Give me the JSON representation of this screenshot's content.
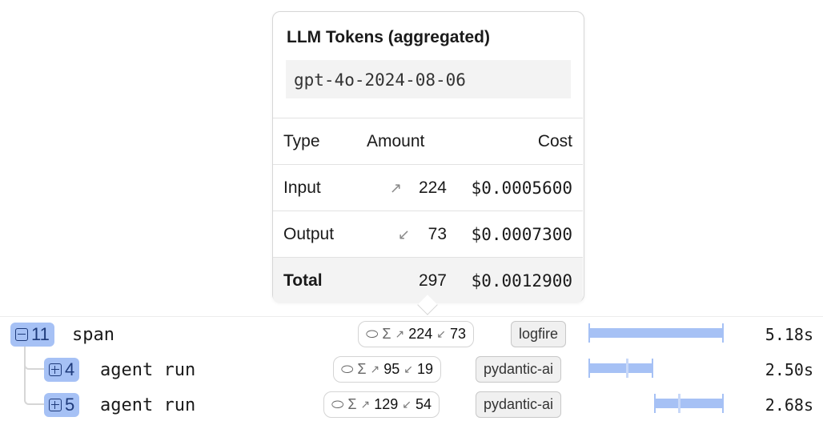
{
  "tooltip": {
    "title": "LLM Tokens (aggregated)",
    "model": "gpt-4o-2024-08-06",
    "headers": [
      "Type",
      "Amount",
      "Cost"
    ],
    "rows": [
      {
        "type": "Input",
        "icon": "arrow-up-right-icon",
        "amount": "224",
        "cost": "$0.0005600"
      },
      {
        "type": "Output",
        "icon": "arrow-down-left-icon",
        "amount": "73",
        "cost": "$0.0007300"
      },
      {
        "type": "Total",
        "amount": "297",
        "cost": "$0.0012900"
      }
    ]
  },
  "spans": [
    {
      "count": "11",
      "expanded": true,
      "name": "span",
      "tokens_in": "224",
      "tokens_out": "73",
      "tag": "logfire",
      "duration": "5.18s"
    },
    {
      "count": "4",
      "expanded": false,
      "name": "agent run",
      "tokens_in": "95",
      "tokens_out": "19",
      "tag": "pydantic-ai",
      "duration": "2.50s"
    },
    {
      "count": "5",
      "expanded": false,
      "name": "agent run",
      "tokens_in": "129",
      "tokens_out": "54",
      "tag": "pydantic-ai",
      "duration": "2.68s"
    }
  ],
  "symbols": {
    "sigma": "Σ",
    "up": "↗",
    "down": "↙"
  },
  "colors": {
    "accent": "#a6c1f5",
    "badge_text": "#1e3a7a"
  }
}
